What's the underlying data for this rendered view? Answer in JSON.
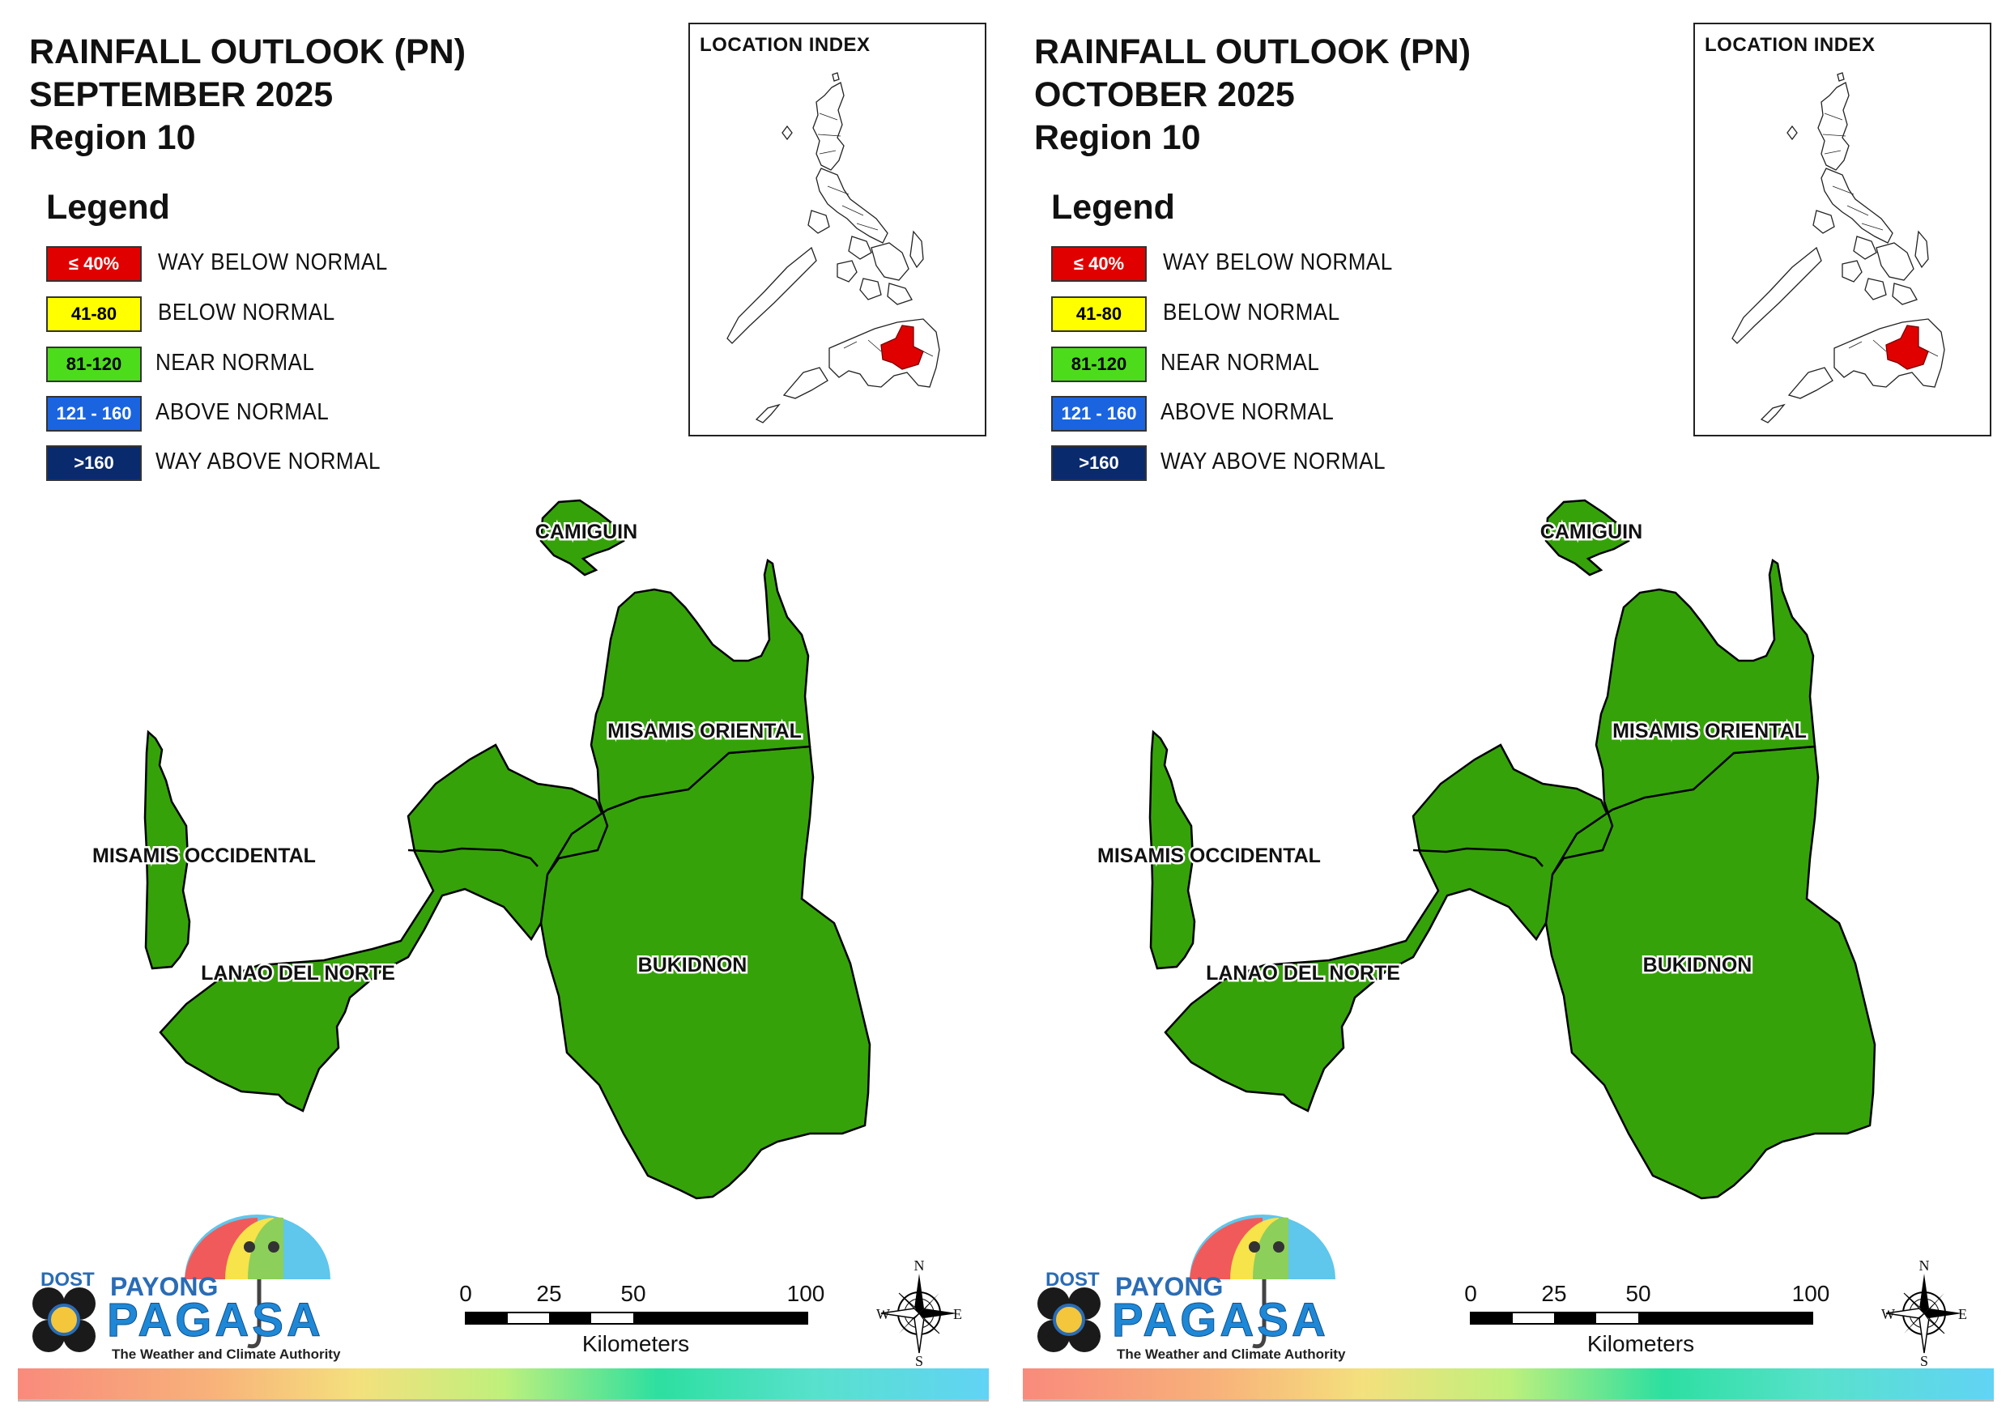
{
  "panels": [
    {
      "title_line1": "RAINFALL OUTLOOK (PN)",
      "title_line2": "SEPTEMBER 2025",
      "title_line3": "Region 10",
      "legend_title": "Legend",
      "legend": [
        {
          "range": "≤ 40%",
          "label": "WAY BELOW NORMAL",
          "color": "#e00000",
          "text_color": "#ffffff"
        },
        {
          "range": "41-80",
          "label": "BELOW NORMAL",
          "color": "#ffff00",
          "text_color": "#000000"
        },
        {
          "range": "81-120",
          "label": "NEAR NORMAL",
          "color": "#4ddc1c",
          "text_color": "#000000"
        },
        {
          "range": "121 - 160",
          "label": "ABOVE NORMAL",
          "color": "#1a64e0",
          "text_color": "#ffffff"
        },
        {
          "range": ">160",
          "label": "WAY ABOVE NORMAL",
          "color": "#0a2a6e",
          "text_color": "#ffffff"
        }
      ],
      "inset_title": "LOCATION INDEX",
      "provinces": [
        {
          "name": "CAMIGUIN",
          "category": "NEAR NORMAL",
          "fill": "#36a20a"
        },
        {
          "name": "MISAMIS ORIENTAL",
          "category": "NEAR NORMAL",
          "fill": "#36a20a"
        },
        {
          "name": "MISAMIS OCCIDENTAL",
          "category": "NEAR NORMAL",
          "fill": "#36a20a"
        },
        {
          "name": "LANAO DEL NORTE",
          "category": "NEAR NORMAL",
          "fill": "#36a20a"
        },
        {
          "name": "BUKIDNON",
          "category": "NEAR NORMAL",
          "fill": "#36a20a"
        }
      ],
      "scale": {
        "ticks": [
          "0",
          "25",
          "50",
          "100"
        ],
        "unit": "Kilometers"
      },
      "compass": {
        "n": "N",
        "e": "E",
        "s": "S",
        "w": "W"
      },
      "logo": {
        "dost": "DOST",
        "payong": "PAYONG",
        "pagasa": "PAGASA",
        "tagline": "The Weather and Climate Authority"
      }
    },
    {
      "title_line1": "RAINFALL OUTLOOK (PN)",
      "title_line2": "OCTOBER 2025",
      "title_line3": "Region 10",
      "legend_title": "Legend",
      "legend": [
        {
          "range": "≤ 40%",
          "label": "WAY BELOW NORMAL",
          "color": "#e00000",
          "text_color": "#ffffff"
        },
        {
          "range": "41-80",
          "label": "BELOW NORMAL",
          "color": "#ffff00",
          "text_color": "#000000"
        },
        {
          "range": "81-120",
          "label": "NEAR NORMAL",
          "color": "#4ddc1c",
          "text_color": "#000000"
        },
        {
          "range": "121 - 160",
          "label": "ABOVE NORMAL",
          "color": "#1a64e0",
          "text_color": "#ffffff"
        },
        {
          "range": ">160",
          "label": "WAY ABOVE NORMAL",
          "color": "#0a2a6e",
          "text_color": "#ffffff"
        }
      ],
      "inset_title": "LOCATION INDEX",
      "provinces": [
        {
          "name": "CAMIGUIN",
          "category": "NEAR NORMAL",
          "fill": "#36a20a"
        },
        {
          "name": "MISAMIS ORIENTAL",
          "category": "NEAR NORMAL",
          "fill": "#36a20a"
        },
        {
          "name": "MISAMIS OCCIDENTAL",
          "category": "NEAR NORMAL",
          "fill": "#36a20a"
        },
        {
          "name": "LANAO DEL NORTE",
          "category": "NEAR NORMAL",
          "fill": "#36a20a"
        },
        {
          "name": "BUKIDNON",
          "category": "NEAR NORMAL",
          "fill": "#36a20a"
        }
      ],
      "scale": {
        "ticks": [
          "0",
          "25",
          "50",
          "100"
        ],
        "unit": "Kilometers"
      },
      "compass": {
        "n": "N",
        "e": "E",
        "s": "S",
        "w": "W"
      },
      "logo": {
        "dost": "DOST",
        "payong": "PAYONG",
        "pagasa": "PAGASA",
        "tagline": "The Weather and Climate Authority"
      }
    }
  ],
  "colors": {
    "province_fill": "#36a20a",
    "inset_highlight": "#e00000"
  }
}
